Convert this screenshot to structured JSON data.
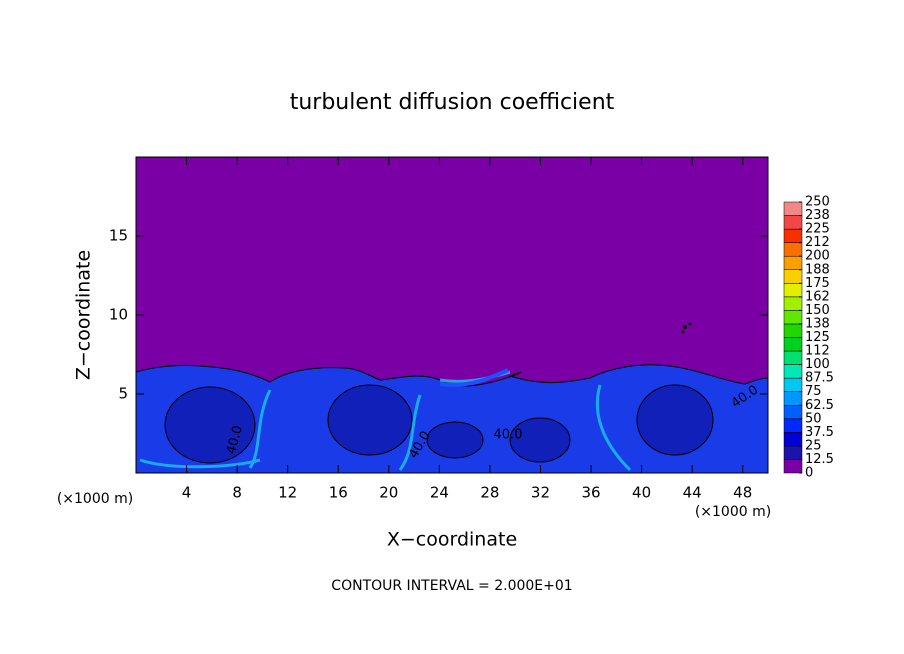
{
  "chart_data": {
    "type": "contour",
    "title": "turbulent diffusion coefficient",
    "x_label": "X−coordinate",
    "y_label": "Z−coordinate",
    "x_unit": "(×1000 m)",
    "x_unit_right": "(×1000 m)",
    "footnote": "CONTOUR INTERVAL = 2.000E+01",
    "xlim": [
      0,
      50
    ],
    "ylim": [
      0,
      20
    ],
    "xticks": [
      4,
      8,
      12,
      16,
      20,
      24,
      28,
      32,
      36,
      40,
      44,
      48
    ],
    "yticks": [
      5,
      10,
      15
    ],
    "contour_labels": [
      "40.0",
      "40.0",
      "40.0",
      "40.0"
    ],
    "colorbar": {
      "levels": [
        0,
        12.5,
        25,
        37.5,
        50,
        62.5,
        75,
        87.5,
        100,
        {
          "value": 112.5,
          "label": "112"
        },
        125,
        {
          "value": 137.5,
          "label": "138"
        },
        150,
        {
          "value": 162.5,
          "label": "162"
        },
        175,
        {
          "value": 187.5,
          "label": "188"
        },
        200,
        {
          "value": 212.5,
          "label": "212"
        },
        225,
        {
          "value": 237.5,
          "label": "238"
        },
        250
      ],
      "colors": [
        "#7a00a6",
        "#1c14a8",
        "#0000d8",
        "#0028ff",
        "#0060ff",
        "#0098ff",
        "#00c8f0",
        "#00e8b8",
        "#00e070",
        "#00d020",
        "#20d800",
        "#60e800",
        "#a0f000",
        "#e0f000",
        "#f8d000",
        "#f8a000",
        "#f87000",
        "#f83000",
        "#f04848",
        "#f08888"
      ]
    }
  }
}
